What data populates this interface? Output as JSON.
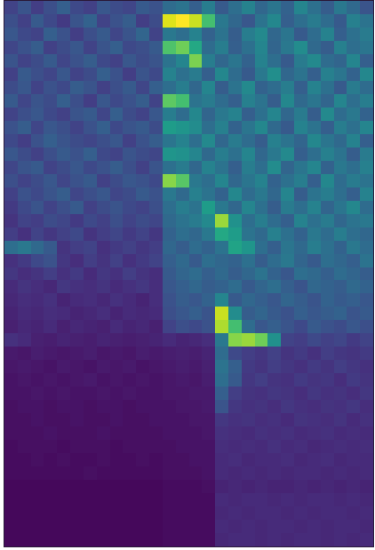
{
  "chart_data": {
    "type": "heatmap",
    "color": "Viridis",
    "zlim": [
      0,
      100
    ],
    "xlim": [
      -0.5,
      27.5
    ],
    "ylim": [
      40.5,
      -0.5
    ],
    "tick_labels": false,
    "cells": [
      [
        20,
        26,
        18,
        24,
        30,
        22,
        19,
        27,
        23,
        21,
        28,
        25,
        35,
        38,
        30,
        42,
        28,
        36,
        44,
        33,
        39,
        31,
        45,
        37,
        29,
        40,
        34,
        26
      ],
      [
        24,
        19,
        28,
        22,
        17,
        26,
        31,
        20,
        25,
        29,
        18,
        23,
        95,
        100,
        92,
        70,
        40,
        33,
        27,
        38,
        46,
        30,
        36,
        41,
        35,
        28,
        43,
        38
      ],
      [
        27,
        22,
        20,
        30,
        25,
        18,
        24,
        28,
        21,
        26,
        32,
        20,
        40,
        36,
        44,
        31,
        38,
        29,
        42,
        47,
        33,
        39,
        28,
        35,
        44,
        30,
        37,
        41
      ],
      [
        21,
        25,
        29,
        19,
        23,
        27,
        20,
        26,
        30,
        22,
        24,
        28,
        72,
        78,
        60,
        35,
        42,
        30,
        37,
        45,
        32,
        40,
        48,
        34,
        29,
        43,
        36,
        39
      ],
      [
        26,
        20,
        23,
        28,
        21,
        25,
        29,
        22,
        19,
        27,
        23,
        26,
        38,
        45,
        80,
        42,
        33,
        39,
        31,
        44,
        36,
        28,
        41,
        47,
        35,
        32,
        45,
        30
      ],
      [
        19,
        28,
        24,
        21,
        27,
        20,
        23,
        30,
        25,
        18,
        26,
        22,
        44,
        37,
        41,
        30,
        46,
        35,
        28,
        40,
        49,
        33,
        38,
        30,
        43,
        39,
        31,
        46
      ],
      [
        23,
        27,
        20,
        25,
        22,
        29,
        26,
        19,
        24,
        28,
        21,
        30,
        36,
        42,
        33,
        45,
        29,
        38,
        47,
        31,
        35,
        42,
        30,
        44,
        37,
        28,
        41,
        35
      ],
      [
        28,
        21,
        26,
        23,
        30,
        24,
        18,
        27,
        22,
        25,
        29,
        20,
        75,
        70,
        38,
        41,
        35,
        30,
        43,
        38,
        29,
        46,
        34,
        39,
        32,
        45,
        36,
        42
      ],
      [
        20,
        24,
        27,
        22,
        19,
        26,
        28,
        21,
        30,
        23,
        20,
        27,
        42,
        35,
        46,
        32,
        40,
        44,
        30,
        37,
        45,
        33,
        41,
        29,
        47,
        35,
        40,
        31
      ],
      [
        25,
        29,
        21,
        27,
        24,
        20,
        25,
        30,
        22,
        26,
        28,
        23,
        55,
        52,
        48,
        36,
        43,
        31,
        39,
        46,
        34,
        28,
        44,
        38,
        30,
        42,
        37,
        45
      ],
      [
        22,
        18,
        25,
        30,
        26,
        23,
        21,
        24,
        27,
        19,
        25,
        29,
        39,
        44,
        36,
        47,
        33,
        41,
        35,
        29,
        43,
        38,
        32,
        46,
        39,
        34,
        44,
        30
      ],
      [
        27,
        23,
        19,
        24,
        28,
        25,
        30,
        22,
        20,
        26,
        23,
        21,
        52,
        50,
        45,
        34,
        42,
        37,
        45,
        33,
        40,
        47,
        30,
        36,
        43,
        38,
        29,
        41
      ],
      [
        21,
        26,
        28,
        20,
        23,
        27,
        22,
        25,
        29,
        24,
        19,
        26,
        37,
        41,
        33,
        44,
        38,
        30,
        42,
        36,
        48,
        32,
        39,
        45,
        31,
        40,
        36,
        43
      ],
      [
        24,
        20,
        23,
        27,
        21,
        25,
        28,
        19,
        23,
        27,
        25,
        22,
        82,
        74,
        40,
        36,
        45,
        33,
        39,
        44,
        31,
        37,
        42,
        30,
        46,
        35,
        41,
        38
      ],
      [
        19,
        25,
        22,
        26,
        29,
        21,
        24,
        27,
        21,
        23,
        28,
        25,
        40,
        34,
        43,
        38,
        31,
        46,
        35,
        40,
        33,
        45,
        29,
        38,
        42,
        36,
        30,
        44
      ],
      [
        17,
        22,
        26,
        20,
        24,
        28,
        19,
        23,
        26,
        22,
        20,
        24,
        36,
        42,
        38,
        55,
        40,
        33,
        45,
        37,
        29,
        41,
        36,
        44,
        32,
        39,
        46,
        35
      ],
      [
        15,
        20,
        18,
        23,
        21,
        17,
        22,
        19,
        24,
        20,
        23,
        21,
        34,
        38,
        41,
        47,
        85,
        50,
        36,
        42,
        35,
        30,
        44,
        37,
        41,
        33,
        38,
        40
      ],
      [
        18,
        14,
        20,
        16,
        19,
        22,
        15,
        18,
        21,
        17,
        20,
        16,
        31,
        36,
        33,
        40,
        60,
        55,
        38,
        34,
        43,
        37,
        31,
        40,
        35,
        42,
        36,
        33
      ],
      [
        36,
        40,
        34,
        28,
        15,
        18,
        20,
        14,
        17,
        19,
        16,
        18,
        33,
        29,
        35,
        31,
        38,
        58,
        52,
        36,
        30,
        39,
        34,
        42,
        37,
        31,
        40,
        35
      ],
      [
        14,
        17,
        22,
        25,
        16,
        13,
        18,
        15,
        19,
        14,
        17,
        20,
        30,
        34,
        28,
        36,
        33,
        31,
        37,
        29,
        35,
        40,
        32,
        28,
        36,
        33,
        30,
        38
      ],
      [
        16,
        13,
        15,
        18,
        14,
        17,
        12,
        16,
        14,
        18,
        15,
        13,
        28,
        32,
        35,
        30,
        34,
        29,
        33,
        38,
        31,
        27,
        36,
        34,
        30,
        35,
        32,
        29
      ],
      [
        12,
        15,
        13,
        11,
        16,
        14,
        13,
        15,
        12,
        14,
        16,
        13,
        27,
        30,
        33,
        29,
        31,
        35,
        28,
        32,
        36,
        30,
        26,
        33,
        31,
        29,
        34,
        31
      ],
      [
        11,
        13,
        12,
        14,
        10,
        12,
        13,
        11,
        14,
        12,
        10,
        13,
        25,
        29,
        27,
        31,
        45,
        28,
        33,
        30,
        27,
        32,
        29,
        26,
        31,
        28,
        30,
        27
      ],
      [
        10,
        12,
        11,
        13,
        12,
        10,
        11,
        13,
        10,
        12,
        11,
        12,
        24,
        27,
        30,
        26,
        92,
        48,
        29,
        32,
        28,
        25,
        30,
        27,
        29,
        31,
        26,
        28
      ],
      [
        9,
        11,
        10,
        12,
        9,
        11,
        10,
        9,
        12,
        10,
        11,
        9,
        20,
        24,
        22,
        25,
        88,
        70,
        35,
        27,
        30,
        26,
        22,
        28,
        25,
        23,
        27,
        24
      ],
      [
        14,
        12,
        9,
        8,
        10,
        9,
        8,
        10,
        9,
        8,
        9,
        10,
        12,
        10,
        11,
        13,
        40,
        82,
        85,
        78,
        50,
        20,
        18,
        22,
        19,
        21,
        17,
        20
      ],
      [
        7,
        6,
        8,
        7,
        6,
        7,
        8,
        6,
        7,
        6,
        8,
        7,
        8,
        9,
        8,
        10,
        35,
        22,
        18,
        16,
        19,
        15,
        17,
        14,
        18,
        16,
        15,
        17
      ],
      [
        6,
        7,
        6,
        5,
        7,
        6,
        5,
        7,
        6,
        7,
        5,
        6,
        7,
        8,
        7,
        9,
        38,
        30,
        17,
        15,
        18,
        16,
        14,
        17,
        15,
        18,
        16,
        14
      ],
      [
        5,
        6,
        5,
        6,
        5,
        6,
        7,
        5,
        6,
        5,
        6,
        5,
        6,
        7,
        6,
        8,
        36,
        28,
        16,
        18,
        15,
        14,
        17,
        15,
        16,
        13,
        17,
        15
      ],
      [
        5,
        5,
        6,
        5,
        6,
        5,
        5,
        6,
        5,
        6,
        5,
        5,
        6,
        6,
        7,
        7,
        30,
        18,
        15,
        14,
        16,
        15,
        13,
        16,
        14,
        15,
        13,
        16
      ],
      [
        4,
        5,
        5,
        4,
        5,
        5,
        4,
        5,
        5,
        4,
        5,
        5,
        5,
        6,
        6,
        7,
        26,
        16,
        14,
        15,
        13,
        16,
        14,
        13,
        15,
        14,
        16,
        13
      ],
      [
        4,
        4,
        5,
        4,
        4,
        5,
        4,
        4,
        5,
        4,
        4,
        5,
        5,
        5,
        6,
        6,
        16,
        14,
        15,
        13,
        14,
        12,
        15,
        14,
        13,
        15,
        12,
        14
      ],
      [
        4,
        4,
        4,
        5,
        4,
        4,
        4,
        5,
        4,
        4,
        4,
        4,
        5,
        5,
        5,
        6,
        14,
        13,
        12,
        14,
        13,
        14,
        12,
        13,
        14,
        12,
        13,
        12
      ],
      [
        3,
        4,
        4,
        4,
        3,
        4,
        4,
        4,
        3,
        4,
        4,
        4,
        4,
        5,
        5,
        5,
        13,
        12,
        13,
        12,
        14,
        12,
        13,
        11,
        12,
        13,
        12,
        13
      ],
      [
        3,
        3,
        4,
        3,
        4,
        3,
        3,
        4,
        3,
        3,
        4,
        3,
        4,
        4,
        5,
        5,
        12,
        13,
        11,
        12,
        12,
        13,
        11,
        12,
        13,
        11,
        12,
        12
      ],
      [
        3,
        3,
        3,
        3,
        3,
        3,
        4,
        3,
        3,
        3,
        3,
        3,
        4,
        4,
        4,
        5,
        12,
        11,
        12,
        11,
        12,
        11,
        12,
        12,
        11,
        12,
        11,
        12
      ],
      [
        2,
        2,
        2,
        2,
        2,
        2,
        2,
        2,
        2,
        2,
        2,
        2,
        3,
        3,
        3,
        4,
        10,
        11,
        10,
        11,
        10,
        10,
        11,
        10,
        11,
        10,
        11,
        10
      ],
      [
        2,
        2,
        2,
        2,
        2,
        2,
        2,
        2,
        2,
        2,
        2,
        2,
        3,
        3,
        3,
        3,
        12,
        11,
        12,
        12,
        11,
        12,
        11,
        12,
        12,
        11,
        12,
        11
      ],
      [
        2,
        2,
        2,
        2,
        2,
        2,
        2,
        2,
        2,
        2,
        2,
        2,
        3,
        3,
        3,
        3,
        11,
        12,
        11,
        12,
        12,
        11,
        12,
        11,
        12,
        12,
        11,
        12
      ],
      [
        2,
        2,
        2,
        2,
        2,
        2,
        2,
        2,
        2,
        2,
        2,
        2,
        3,
        3,
        3,
        3,
        12,
        11,
        12,
        11,
        12,
        12,
        11,
        12,
        11,
        12,
        12,
        11
      ],
      [
        2,
        2,
        2,
        2,
        2,
        2,
        2,
        2,
        2,
        2,
        2,
        2,
        3,
        3,
        3,
        3,
        11,
        12,
        12,
        11,
        12,
        11,
        12,
        12,
        11,
        12,
        11,
        12
      ]
    ]
  }
}
